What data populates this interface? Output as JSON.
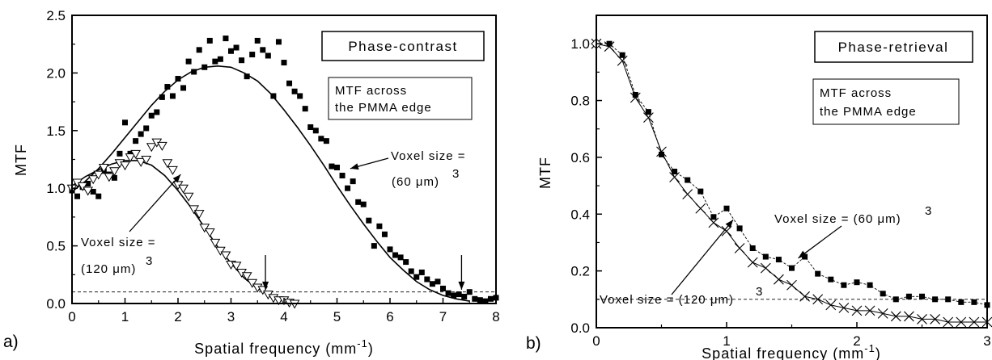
{
  "chart_data": [
    {
      "type": "scatter",
      "panel_label": "a)",
      "xlabel": "Spatial frequency (mm",
      "xlabel_sup": "-1",
      "xlabel_end": ")",
      "ylabel": "MTF",
      "xlim": [
        0,
        8
      ],
      "ylim": [
        0,
        2.5
      ],
      "xticks": [
        "0",
        "1",
        "2",
        "3",
        "4",
        "5",
        "6",
        "7",
        "8"
      ],
      "yticks": [
        "0.0",
        "0.5",
        "1.0",
        "1.5",
        "2.0",
        "2.5"
      ],
      "title_box": "Phase-contrast",
      "info_box": [
        "MTF across",
        "the PMMA edge"
      ],
      "threshold": 0.1,
      "annotations": {
        "voxel60": {
          "line1": "Voxel size =",
          "line2": "(60 μm)",
          "sup": "3"
        },
        "voxel120": {
          "line1": "Voxel size =",
          "line2": "(120 μm)",
          "sup": "3"
        }
      },
      "arrows_at_x": [
        3.65,
        7.35
      ],
      "series": [
        {
          "marker": "square",
          "x": [
            0.0,
            0.1,
            0.2,
            0.3,
            0.4,
            0.5,
            0.6,
            0.7,
            0.8,
            0.9,
            1.0,
            1.1,
            1.2,
            1.3,
            1.4,
            1.5,
            1.6,
            1.7,
            1.8,
            1.9,
            2.0,
            2.1,
            2.2,
            2.3,
            2.4,
            2.5,
            2.6,
            2.7,
            2.8,
            2.9,
            3.0,
            3.1,
            3.2,
            3.3,
            3.4,
            3.5,
            3.6,
            3.7,
            3.8,
            3.9,
            4.0,
            4.1,
            4.2,
            4.3,
            4.4,
            4.5,
            4.6,
            4.7,
            4.8,
            4.9,
            5.0,
            5.1,
            5.2,
            5.3,
            5.4,
            5.5,
            5.6,
            5.7,
            5.8,
            5.9,
            6.0,
            6.1,
            6.2,
            6.3,
            6.4,
            6.5,
            6.6,
            6.7,
            6.8,
            6.9,
            7.0,
            7.1,
            7.2,
            7.3,
            7.4,
            7.5,
            7.6,
            7.7,
            7.8,
            7.9,
            8.0
          ],
          "y": [
            0.98,
            0.93,
            1.01,
            1.04,
            0.97,
            0.93,
            1.15,
            1.12,
            1.09,
            1.3,
            1.57,
            1.3,
            1.41,
            1.47,
            1.52,
            1.63,
            1.66,
            1.79,
            1.88,
            1.8,
            1.95,
            1.87,
            2.1,
            2.01,
            2.2,
            2.05,
            2.28,
            2.1,
            2.12,
            2.3,
            2.19,
            2.22,
            2.11,
            1.97,
            2.16,
            2.28,
            2.2,
            2.15,
            1.8,
            2.27,
            2.09,
            1.91,
            1.84,
            1.8,
            1.69,
            1.53,
            1.5,
            1.43,
            1.41,
            1.19,
            1.18,
            1.11,
            1.0,
            1.06,
            0.88,
            0.86,
            0.72,
            0.5,
            0.67,
            0.6,
            0.47,
            0.42,
            0.4,
            0.36,
            0.28,
            0.23,
            0.27,
            0.21,
            0.17,
            0.19,
            0.13,
            0.09,
            0.07,
            0.08,
            0.06,
            0.1,
            0.04,
            0.03,
            0.02,
            0.04,
            0.05
          ]
        },
        {
          "marker": "triangle-down-open",
          "x": [
            0.0,
            0.1,
            0.2,
            0.3,
            0.4,
            0.5,
            0.6,
            0.7,
            0.8,
            0.9,
            1.0,
            1.1,
            1.2,
            1.3,
            1.4,
            1.5,
            1.6,
            1.7,
            1.8,
            1.9,
            2.0,
            2.1,
            2.2,
            2.3,
            2.4,
            2.5,
            2.6,
            2.7,
            2.8,
            2.9,
            3.0,
            3.1,
            3.2,
            3.3,
            3.4,
            3.5,
            3.6,
            3.7,
            3.8,
            3.9,
            4.0,
            4.1,
            4.2
          ],
          "y": [
            1.0,
            1.05,
            1.02,
            0.98,
            1.08,
            1.12,
            1.18,
            1.1,
            1.15,
            1.22,
            1.2,
            1.27,
            1.3,
            1.23,
            1.25,
            1.36,
            1.4,
            1.37,
            1.22,
            1.16,
            1.03,
            1.0,
            0.93,
            0.82,
            0.78,
            0.66,
            0.62,
            0.53,
            0.46,
            0.42,
            0.34,
            0.33,
            0.27,
            0.24,
            0.18,
            0.14,
            0.12,
            0.08,
            0.05,
            0.03,
            0.03,
            0.01,
            0.0
          ]
        },
        {
          "marker": "line",
          "x": [
            0.0,
            0.25,
            0.5,
            0.75,
            1.0,
            1.25,
            1.5,
            1.75,
            2.0,
            2.25,
            2.5,
            2.75,
            3.0,
            3.25,
            3.5,
            3.75,
            4.0,
            4.25,
            4.5,
            4.75,
            5.0,
            5.25,
            5.5,
            5.75,
            6.0,
            6.25,
            6.5,
            6.75,
            7.0,
            7.25,
            7.5
          ],
          "y": [
            0.97,
            1.06,
            1.17,
            1.3,
            1.44,
            1.58,
            1.72,
            1.84,
            1.94,
            2.01,
            2.05,
            2.06,
            2.05,
            2.0,
            1.93,
            1.82,
            1.68,
            1.53,
            1.37,
            1.2,
            1.02,
            0.85,
            0.69,
            0.54,
            0.4,
            0.29,
            0.19,
            0.12,
            0.07,
            0.04,
            0.02
          ]
        },
        {
          "marker": "line",
          "x": [
            0.0,
            0.25,
            0.5,
            0.75,
            1.0,
            1.25,
            1.5,
            1.75,
            2.0,
            2.25,
            2.5,
            2.75,
            3.0,
            3.25,
            3.5,
            3.75,
            4.0,
            4.25
          ],
          "y": [
            1.02,
            1.1,
            1.16,
            1.21,
            1.24,
            1.24,
            1.2,
            1.11,
            0.98,
            0.83,
            0.66,
            0.49,
            0.35,
            0.22,
            0.13,
            0.07,
            0.03,
            0.01
          ]
        }
      ]
    },
    {
      "type": "line",
      "panel_label": "b)",
      "xlabel": "Spatial frequency (mm",
      "xlabel_sup": "-1",
      "xlabel_end": ")",
      "ylabel": "MTF",
      "xlim": [
        0,
        3
      ],
      "ylim": [
        0,
        1.1
      ],
      "xticks": [
        "0",
        "1",
        "2",
        "3"
      ],
      "yticks": [
        "0.0",
        "0.2",
        "0.4",
        "0.6",
        "0.8",
        "1.0"
      ],
      "title_box": "Phase-retrieval",
      "info_box": [
        "MTF across",
        "the PMMA edge"
      ],
      "threshold": 0.1,
      "annotations": {
        "voxel60": {
          "line1": "Voxel size = (60 μm)",
          "sup": "3"
        },
        "voxel120": {
          "line1": "Voxel size = (120 μm)",
          "sup": "3"
        }
      },
      "series": [
        {
          "marker": "square",
          "x": [
            0.0,
            0.1,
            0.2,
            0.3,
            0.4,
            0.5,
            0.6,
            0.7,
            0.8,
            0.9,
            1.0,
            1.1,
            1.2,
            1.3,
            1.4,
            1.5,
            1.6,
            1.7,
            1.8,
            1.9,
            2.0,
            2.1,
            2.2,
            2.3,
            2.4,
            2.5,
            2.6,
            2.7,
            2.8,
            2.9,
            3.0
          ],
          "y": [
            1.0,
            1.0,
            0.96,
            0.82,
            0.76,
            0.61,
            0.55,
            0.52,
            0.48,
            0.39,
            0.42,
            0.35,
            0.28,
            0.25,
            0.24,
            0.21,
            0.25,
            0.19,
            0.17,
            0.15,
            0.16,
            0.15,
            0.12,
            0.1,
            0.11,
            0.11,
            0.1,
            0.1,
            0.09,
            0.09,
            0.08
          ]
        },
        {
          "marker": "x",
          "x": [
            0.0,
            0.1,
            0.2,
            0.3,
            0.4,
            0.5,
            0.6,
            0.7,
            0.8,
            0.9,
            1.0,
            1.1,
            1.2,
            1.3,
            1.4,
            1.5,
            1.6,
            1.7,
            1.8,
            1.9,
            2.0,
            2.1,
            2.2,
            2.3,
            2.4,
            2.5,
            2.6,
            2.7,
            2.8,
            2.9,
            3.0
          ],
          "y": [
            1.0,
            0.99,
            0.94,
            0.81,
            0.74,
            0.62,
            0.53,
            0.47,
            0.42,
            0.37,
            0.34,
            0.28,
            0.23,
            0.21,
            0.17,
            0.15,
            0.11,
            0.1,
            0.08,
            0.07,
            0.06,
            0.06,
            0.05,
            0.04,
            0.04,
            0.03,
            0.03,
            0.02,
            0.02,
            0.02,
            0.02
          ]
        }
      ]
    }
  ]
}
